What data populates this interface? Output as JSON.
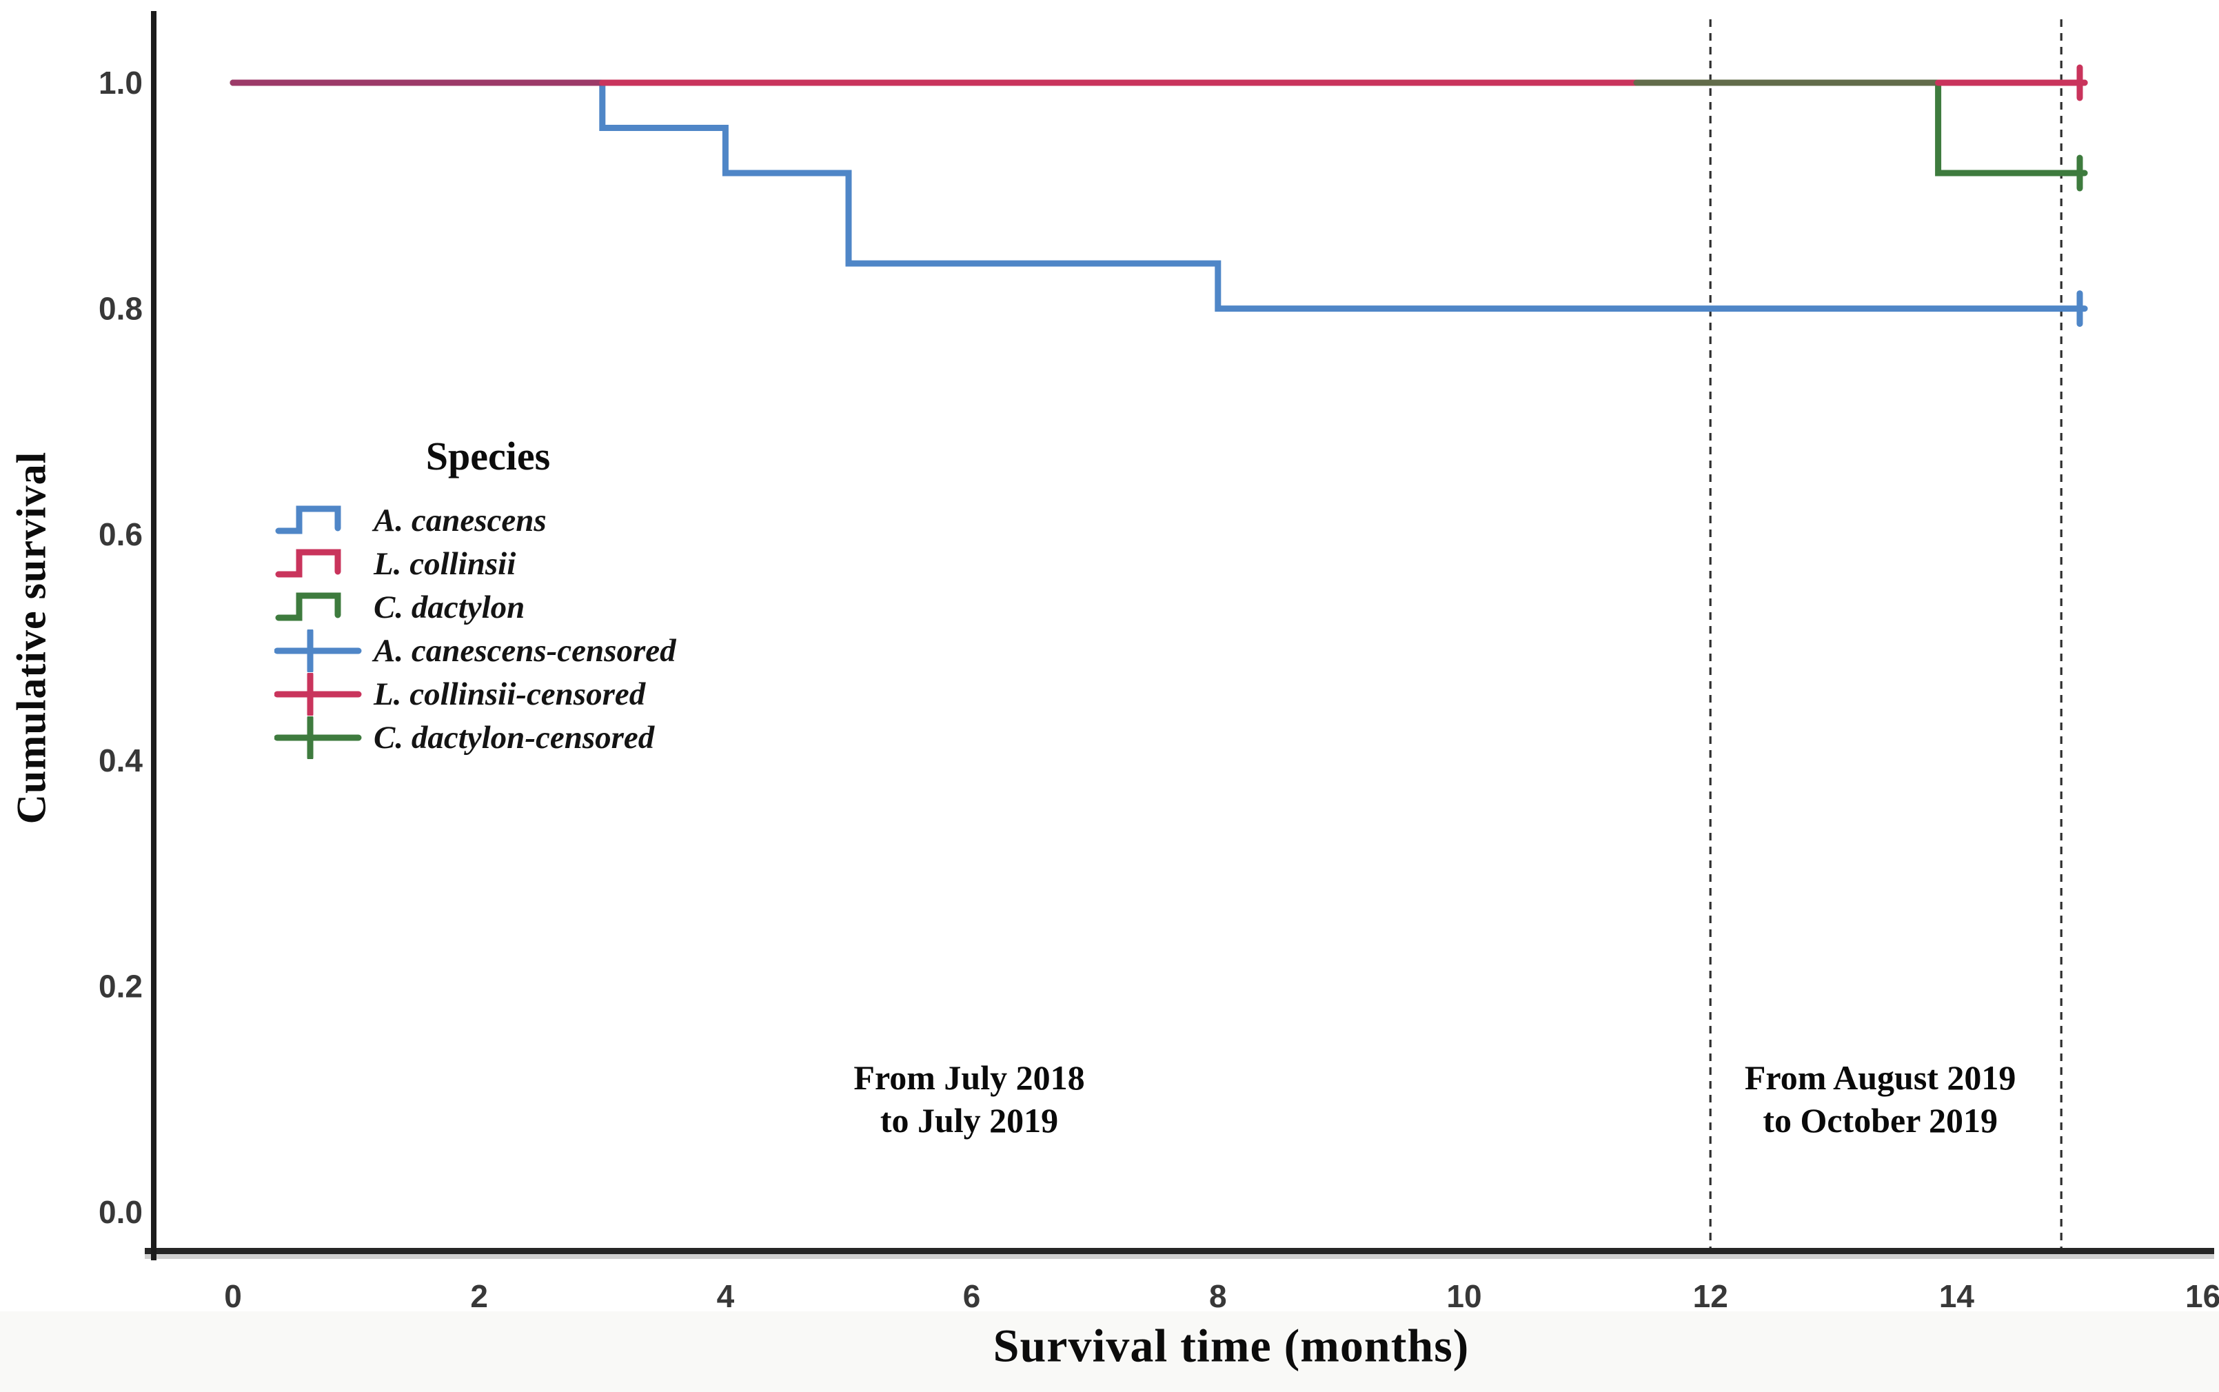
{
  "chart_data": {
    "type": "line",
    "line_style": "kaplan_meier_step",
    "title": "",
    "xlabel": "Survival time (months)",
    "ylabel": "Cumulative survival",
    "xlim": [
      0,
      16
    ],
    "ylim": [
      0.0,
      1.05
    ],
    "x_ticks": [
      "0",
      "2",
      "4",
      "6",
      "8",
      "10",
      "12",
      "14",
      "16"
    ],
    "y_ticks": [
      "1.0",
      "0.8",
      "0.6",
      "0.4",
      "0.2",
      "0.0"
    ],
    "y_tick_values": [
      1.0,
      0.8,
      0.6,
      0.4,
      0.2,
      0.0
    ],
    "x_tick_values": [
      0,
      2,
      4,
      6,
      8,
      10,
      12,
      14,
      16
    ],
    "grid": false,
    "legend_position": "inside-upper-left",
    "series": [
      {
        "name": "A. canescens",
        "color": "#4f86c7",
        "points": [
          [
            0,
            1.0
          ],
          [
            3,
            1.0
          ],
          [
            3,
            0.96
          ],
          [
            4,
            0.96
          ],
          [
            4,
            0.92
          ],
          [
            5,
            0.92
          ],
          [
            5,
            0.84
          ],
          [
            8,
            0.84
          ],
          [
            8,
            0.8
          ],
          [
            15.04,
            0.8
          ]
        ],
        "censored_at": [
          [
            15.0,
            0.8
          ]
        ]
      },
      {
        "name": "L. collinsii",
        "color": "#c9345c",
        "points": [
          [
            0,
            1.0
          ],
          [
            15.04,
            1.0
          ]
        ],
        "censored_at": [
          [
            15.0,
            1.0
          ]
        ]
      },
      {
        "name": "C. dactylon",
        "color": "#3e7b3e",
        "points": [
          [
            0,
            1.0
          ],
          [
            13.85,
            1.0
          ],
          [
            13.85,
            0.92
          ],
          [
            15.04,
            0.92
          ]
        ],
        "censored_at": [
          [
            15.0,
            0.92
          ]
        ]
      }
    ],
    "overlap_segments": [
      {
        "y": 1.0,
        "from_x": 0.0,
        "to_x": 3.0,
        "color": "#9c3a68",
        "note": "L. collinsii overlapping A. canescens"
      },
      {
        "y": 1.0,
        "from_x": 3.0,
        "to_x": 11.4,
        "color": "#c9345c",
        "note": "L. collinsii"
      },
      {
        "y": 1.0,
        "from_x": 11.4,
        "to_x": 13.85,
        "color": "#626c4a",
        "note": "C. dactylon overlapping L. collinsii"
      },
      {
        "y": 1.0,
        "from_x": 13.85,
        "to_x": 15.04,
        "color": "#c9345c",
        "note": "L. collinsii"
      }
    ],
    "reference_lines": [
      {
        "x": 12
      },
      {
        "x": 14.85
      }
    ],
    "annotations": [
      {
        "lines": [
          "From July 2018",
          "to July 2019"
        ],
        "x": 5.98,
        "y": 0.1
      },
      {
        "lines": [
          "From August 2019",
          "to October 2019"
        ],
        "x": 13.38,
        "y": 0.1
      }
    ]
  },
  "legend": {
    "title": "Species",
    "items": [
      {
        "label": "A. canescens",
        "color": "#4f86c7",
        "marker": "step"
      },
      {
        "label": "L. collinsii",
        "color": "#c9345c",
        "marker": "step"
      },
      {
        "label": "C. dactylon",
        "color": "#3e7b3e",
        "marker": "step"
      },
      {
        "label": "A. canescens-censored",
        "color": "#4f86c7",
        "marker": "censored"
      },
      {
        "label": "L. collinsii-censored",
        "color": "#c9345c",
        "marker": "censored"
      },
      {
        "label": "C. dactylon-censored",
        "color": "#3e7b3e",
        "marker": "censored"
      }
    ]
  },
  "colors": {
    "axis": "#262626",
    "axis_shadow": "#9a9a9a",
    "tick_text": "#383838",
    "dashed_line": "#2f2f2f",
    "background": "#ffffff",
    "bottom_strip": "#f4f4f1"
  }
}
